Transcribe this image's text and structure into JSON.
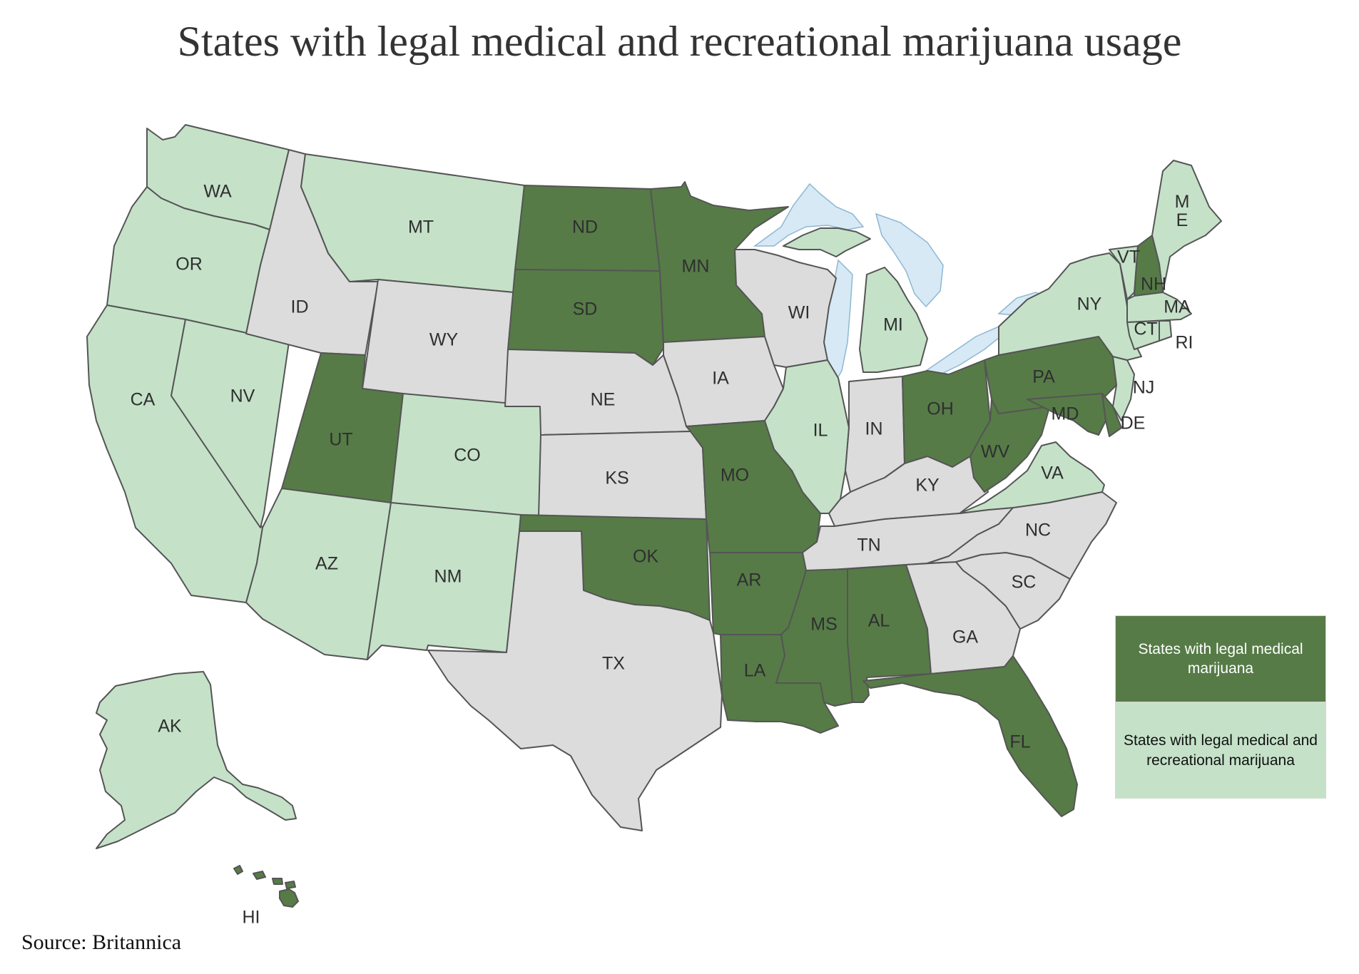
{
  "title": "States with legal medical and recreational marijuana usage",
  "source": "Source: Britannica",
  "colors": {
    "medical": "#567b47",
    "recreational": "#c5e2c9",
    "none": "#dcdcdc",
    "lakes": "#d6e9f5",
    "border": "#555555"
  },
  "legend": {
    "medical": "States with legal medical marijuana",
    "recreational": "States with legal medical and recreational marijuana"
  },
  "states": [
    {
      "abbr": "WA",
      "status": "recreational"
    },
    {
      "abbr": "OR",
      "status": "recreational"
    },
    {
      "abbr": "CA",
      "status": "recreational"
    },
    {
      "abbr": "NV",
      "status": "recreational"
    },
    {
      "abbr": "ID",
      "status": "none"
    },
    {
      "abbr": "MT",
      "status": "recreational"
    },
    {
      "abbr": "WY",
      "status": "none"
    },
    {
      "abbr": "UT",
      "status": "medical"
    },
    {
      "abbr": "AZ",
      "status": "recreational"
    },
    {
      "abbr": "CO",
      "status": "recreational"
    },
    {
      "abbr": "NM",
      "status": "recreational"
    },
    {
      "abbr": "ND",
      "status": "medical"
    },
    {
      "abbr": "SD",
      "status": "medical"
    },
    {
      "abbr": "NE",
      "status": "none"
    },
    {
      "abbr": "KS",
      "status": "none"
    },
    {
      "abbr": "OK",
      "status": "medical"
    },
    {
      "abbr": "TX",
      "status": "none"
    },
    {
      "abbr": "MN",
      "status": "medical"
    },
    {
      "abbr": "IA",
      "status": "none"
    },
    {
      "abbr": "MO",
      "status": "medical"
    },
    {
      "abbr": "AR",
      "status": "medical"
    },
    {
      "abbr": "LA",
      "status": "medical"
    },
    {
      "abbr": "WI",
      "status": "none"
    },
    {
      "abbr": "IL",
      "status": "recreational"
    },
    {
      "abbr": "MI",
      "status": "recreational"
    },
    {
      "abbr": "IN",
      "status": "none"
    },
    {
      "abbr": "OH",
      "status": "medical"
    },
    {
      "abbr": "KY",
      "status": "none"
    },
    {
      "abbr": "TN",
      "status": "none"
    },
    {
      "abbr": "MS",
      "status": "medical"
    },
    {
      "abbr": "AL",
      "status": "medical"
    },
    {
      "abbr": "GA",
      "status": "none"
    },
    {
      "abbr": "FL",
      "status": "medical"
    },
    {
      "abbr": "SC",
      "status": "none"
    },
    {
      "abbr": "NC",
      "status": "none"
    },
    {
      "abbr": "VA",
      "status": "recreational"
    },
    {
      "abbr": "WV",
      "status": "medical"
    },
    {
      "abbr": "MD",
      "status": "medical"
    },
    {
      "abbr": "DE",
      "status": "medical"
    },
    {
      "abbr": "PA",
      "status": "medical"
    },
    {
      "abbr": "NJ",
      "status": "recreational"
    },
    {
      "abbr": "NY",
      "status": "recreational"
    },
    {
      "abbr": "CT",
      "status": "recreational"
    },
    {
      "abbr": "RI",
      "status": "recreational"
    },
    {
      "abbr": "MA",
      "status": "recreational"
    },
    {
      "abbr": "VT",
      "status": "recreational"
    },
    {
      "abbr": "NH",
      "status": "medical"
    },
    {
      "abbr": "ME",
      "status": "recreational"
    },
    {
      "abbr": "AK",
      "status": "recreational"
    },
    {
      "abbr": "HI",
      "status": "medical"
    }
  ]
}
